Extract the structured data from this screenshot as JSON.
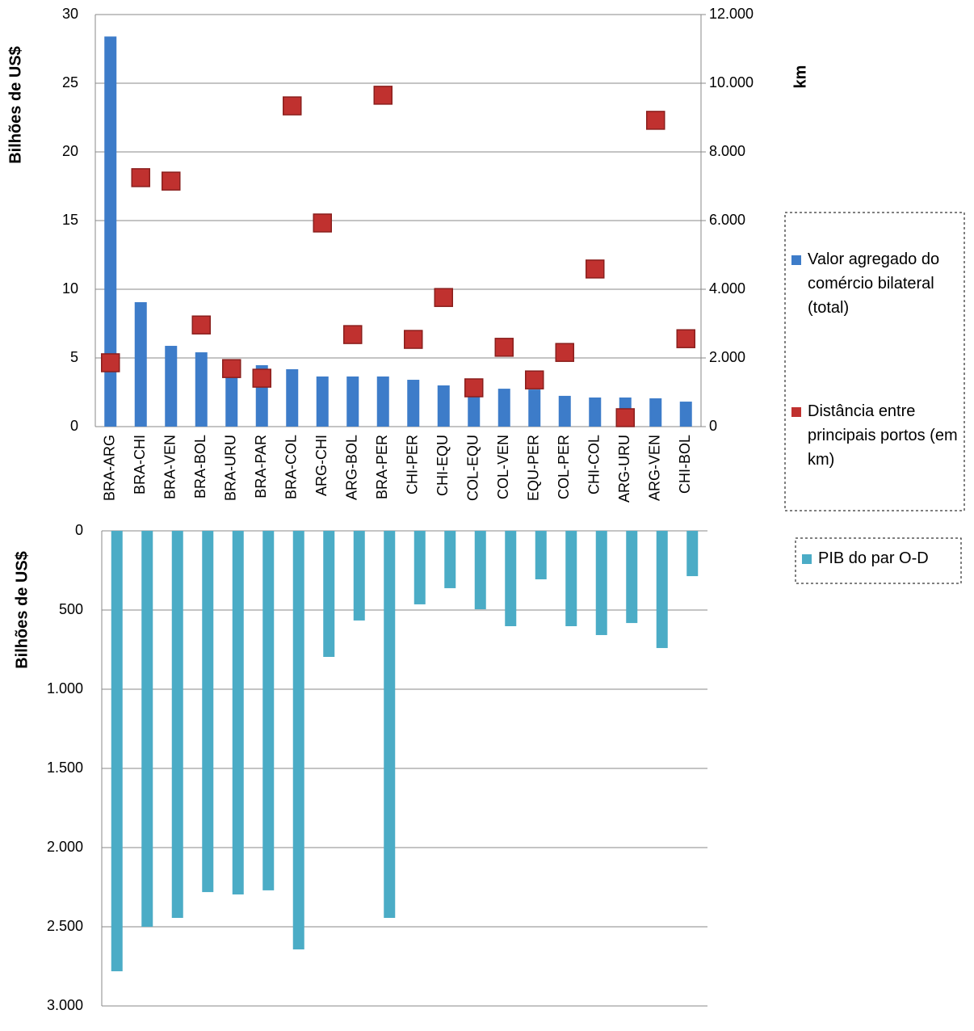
{
  "chart_data": [
    {
      "type": "bar",
      "ylabel": "Bilhões de US$",
      "y2label": "km",
      "categories": [
        "BRA-ARG",
        "BRA-CHI",
        "BRA-VEN",
        "BRA-BOL",
        "BRA-URU",
        "BRA-PAR",
        "BRA-COL",
        "ARG-CHI",
        "ARG-BOL",
        "BRA-PER",
        "CHI-PER",
        "CHI-EQU",
        "COL-EQU",
        "COL-VEN",
        "EQU-PER",
        "COL-PER",
        "CHI-COL",
        "ARG-URU",
        "ARG-VEN",
        "CHI-BOL"
      ],
      "series": [
        {
          "name": "Valor agregado do comércio bilateral (total)",
          "color": "#3d7cc9",
          "values": [
            28.4,
            9.06,
            5.88,
            5.41,
            4.0,
            4.47,
            4.18,
            3.65,
            3.65,
            3.65,
            3.41,
            3.0,
            2.6,
            2.76,
            2.7,
            2.24,
            2.12,
            2.12,
            2.06,
            1.82
          ]
        },
        {
          "name": "Distância entre principais portos (em km)",
          "color": "#c0312f",
          "type": "scatter",
          "axis": "y2",
          "values": [
            1860,
            7250,
            7150,
            2960,
            1690,
            1410,
            9340,
            5930,
            2680,
            9650,
            2540,
            3760,
            1130,
            2310,
            1360,
            2160,
            4590,
            260,
            8920,
            2560
          ]
        }
      ],
      "ylim": [
        0,
        30
      ],
      "yticks": [
        0,
        5,
        10,
        15,
        20,
        25,
        30
      ],
      "y2lim": [
        0,
        12000
      ],
      "y2ticks": [
        0,
        {
          "value": 2000,
          "label": "2.000"
        },
        {
          "value": 4000,
          "label": "4.000"
        },
        {
          "value": 6000,
          "label": "6.000"
        },
        {
          "value": 8000,
          "label": "8.000"
        },
        {
          "value": 10000,
          "label": "10.000"
        },
        {
          "value": 12000,
          "label": "12.000"
        }
      ],
      "grid": true
    },
    {
      "type": "bar",
      "ylabel": "Bilhões de US$",
      "y_inverted": true,
      "series": [
        {
          "name": "PIB do par O-D",
          "color": "#4bacc6",
          "values": [
            2781,
            2500,
            2444,
            2281,
            2296,
            2270,
            2643,
            796,
            566,
            2444,
            464,
            362,
            495,
            602,
            306,
            602,
            658,
            582,
            740,
            286
          ]
        }
      ],
      "ylim": [
        0,
        3000
      ],
      "yticks": [
        0,
        500,
        {
          "value": 1000,
          "label": "1.000"
        },
        {
          "value": 1500,
          "label": "1.500"
        },
        {
          "value": 2000,
          "label": "2.000"
        },
        {
          "value": 2500,
          "label": "2.500"
        },
        {
          "value": 3000,
          "label": "3.000"
        }
      ],
      "grid": true
    }
  ]
}
